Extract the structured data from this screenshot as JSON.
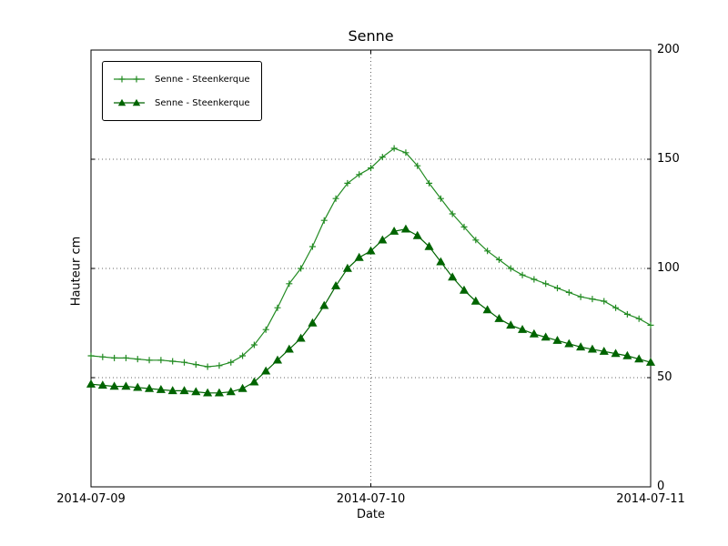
{
  "chart_data": {
    "type": "line",
    "title": "Senne",
    "xlabel": "Date",
    "ylabel": "Hauteur cm",
    "grid": "dotted",
    "legend_position": "upper-left",
    "ylim": [
      0,
      200
    ],
    "y_ticks": [
      0,
      50,
      100,
      150,
      200
    ],
    "x_ticks": [
      "2014-07-09",
      "2014-07-10",
      "2014-07-11"
    ],
    "x_tick_hours": [
      0,
      24,
      48
    ],
    "xlim_hours": [
      0,
      48
    ],
    "x_hours": [
      0,
      1,
      2,
      3,
      4,
      5,
      6,
      7,
      8,
      9,
      10,
      11,
      12,
      13,
      14,
      15,
      16,
      17,
      18,
      19,
      20,
      21,
      22,
      23,
      24,
      25,
      26,
      27,
      28,
      29,
      30,
      31,
      32,
      33,
      34,
      35,
      36,
      37,
      38,
      39,
      40,
      41,
      42,
      43,
      44,
      45,
      46,
      47,
      48
    ],
    "series": [
      {
        "name": "Senne - Steenkerque",
        "marker": "plus",
        "color": "#228b22",
        "values": [
          60,
          59.5,
          59,
          59,
          58.5,
          58,
          58,
          57.5,
          57,
          56,
          55,
          55.5,
          57,
          60,
          65,
          72,
          82,
          93,
          100,
          110,
          122,
          132,
          139,
          143,
          146,
          151,
          155,
          153,
          147,
          139,
          132,
          125,
          119,
          113,
          108,
          104,
          100,
          97,
          95,
          93,
          91,
          89,
          87,
          86,
          85,
          82,
          79,
          77,
          74
        ]
      },
      {
        "name": "Senne - Steenkerque",
        "marker": "triangle",
        "color": "#006400",
        "values": [
          47,
          46.5,
          46,
          46,
          45.5,
          45,
          44.5,
          44,
          44,
          43.5,
          43,
          43,
          43.5,
          45,
          48,
          53,
          58,
          63,
          68,
          75,
          83,
          92,
          100,
          105,
          108,
          113,
          117,
          118,
          115,
          110,
          103,
          96,
          90,
          85,
          81,
          77,
          74,
          72,
          70,
          68.5,
          67,
          65.5,
          64,
          63,
          62,
          61,
          60,
          58.5,
          57
        ]
      }
    ],
    "grid_color": "#666666",
    "axis_color": "#000000"
  }
}
